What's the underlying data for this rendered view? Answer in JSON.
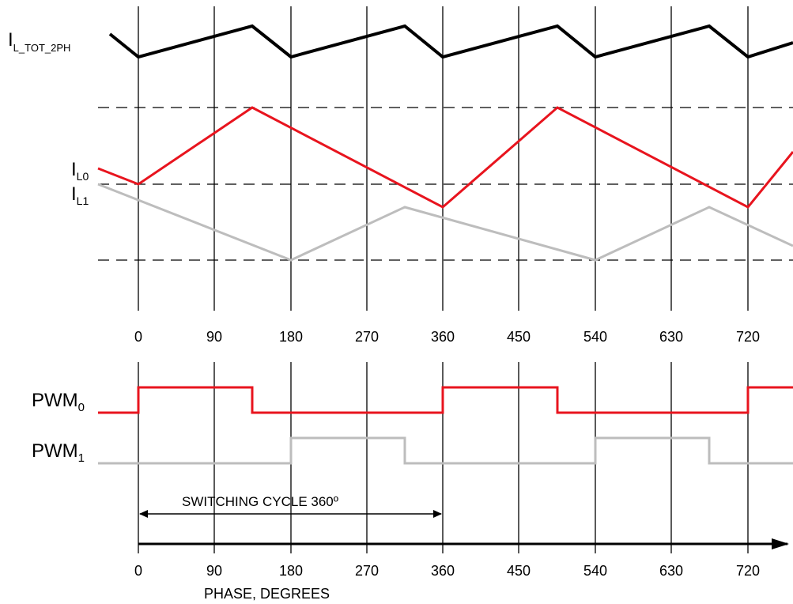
{
  "signals": {
    "i_tot": {
      "main": "I",
      "sub": "L_TOT_2PH"
    },
    "i_l0": {
      "main": "I",
      "sub": "L0"
    },
    "i_l1": {
      "main": "I",
      "sub": "L1"
    },
    "pwm0": {
      "main": "PWM",
      "sub": "0"
    },
    "pwm1": {
      "main": "PWM",
      "sub": "1"
    }
  },
  "phase_ticks_top": [
    "0",
    "90",
    "180",
    "270",
    "360",
    "450",
    "540",
    "630",
    "720"
  ],
  "phase_ticks_bottom": [
    "0",
    "90",
    "180",
    "270",
    "360",
    "450",
    "540",
    "630",
    "720"
  ],
  "switching_cycle_label": "SWITCHING CYCLE 360º",
  "x_axis_label": "PHASE, DEGREES",
  "colors": {
    "phase0": "#e8141e",
    "phase1": "#bdbdbd",
    "total": "#000000",
    "grid": "#000000"
  }
}
